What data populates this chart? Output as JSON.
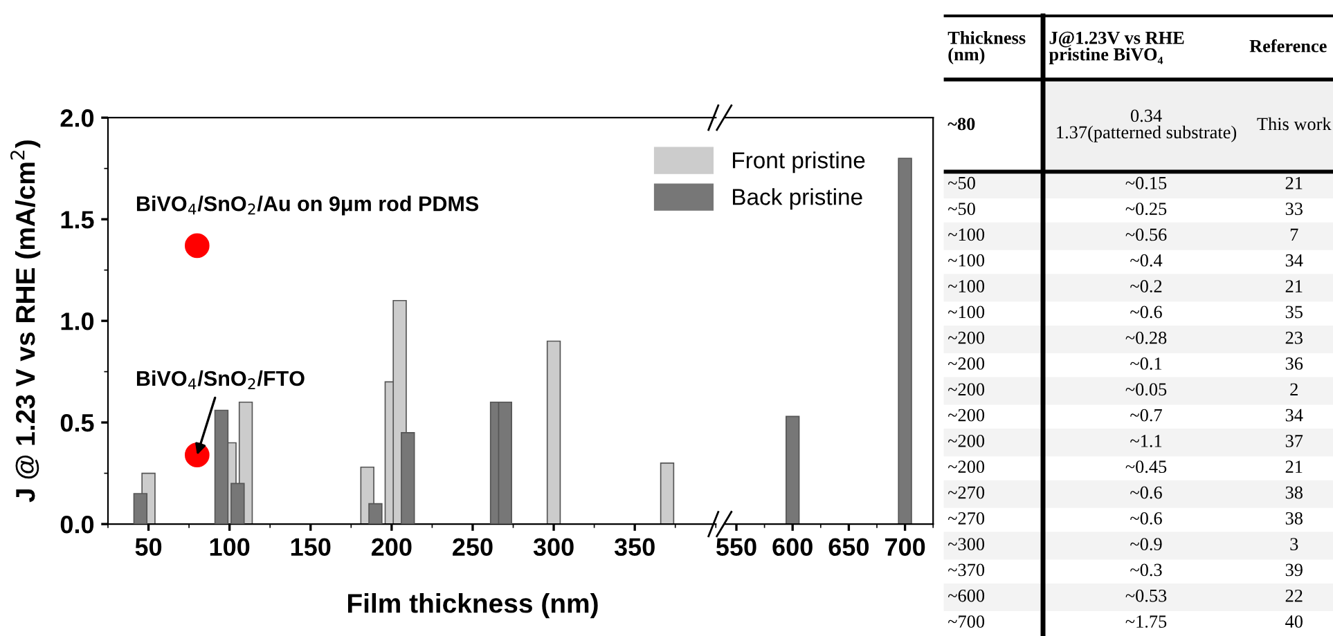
{
  "chart_data": [
    {
      "type": "bar",
      "ylabel": "J @ 1.23 V vs RHE (mA/cm$^{2}$)",
      "xlabel": "Film thickness (nm)",
      "xlim": [
        25,
        400
      ],
      "xticks": [
        50,
        100,
        150,
        200,
        250,
        300,
        350
      ],
      "ylim": [
        0,
        2.0
      ],
      "yticks": [
        {
          "value": 0,
          "label": "0.0"
        },
        {
          "value": 0.5,
          "label": "0.5"
        },
        {
          "value": 1.0,
          "label": "1.0"
        },
        {
          "value": 1.5,
          "label": "1.5"
        },
        {
          "value": 2.0,
          "label": "2.0"
        }
      ],
      "grid": false,
      "legend": "top right",
      "series": [
        {
          "name": "Front pristine",
          "color": "#cccccc",
          "x": [
            50,
            100,
            110,
            185,
            200,
            205,
            300,
            370
          ],
          "values": [
            0.25,
            0.4,
            0.6,
            0.28,
            0.7,
            1.1,
            0.9,
            0.3
          ]
        },
        {
          "name": "Back pristine",
          "color": "#777777",
          "x": [
            45,
            95,
            105,
            190,
            210,
            265,
            270
          ],
          "values": [
            0.15,
            0.56,
            0.2,
            0.1,
            0.45,
            0.6,
            0.6
          ]
        },
        {
          "type": "scatter",
          "color": "#ff0000",
          "marker": "circle",
          "x": [
            80,
            80
          ],
          "values": [
            1.37,
            0.34
          ]
        }
      ],
      "annotations": [
        {
          "text": "BiVO$_{4}$/SnO$_{2}$/Au on 9μm rod PDMS",
          "x": 80,
          "y": 1.37
        },
        {
          "text": "BiVO$_{4}$/SnO$_{2}$/FTO",
          "x": 80,
          "y": 0.34
        }
      ]
    },
    {
      "type": "bar",
      "xlim": [
        540,
        725
      ],
      "xticks": [
        550,
        600,
        650,
        700
      ],
      "ylim": [
        0,
        2.0
      ],
      "tick_labels": "x",
      "grid": false,
      "series": [
        {
          "color": "#777777",
          "x": [
            600,
            700
          ],
          "values": [
            0.53,
            1.8
          ]
        }
      ]
    },
    {
      "type": "other",
      "categories": [
        "Thickness (nm)",
        "J@1.23V vs RHE pristine BiVO₄",
        "Reference"
      ],
      "cell_labels": [
        [
          "~80",
          "0.34\n1.37(patterned substrate)",
          "This work"
        ],
        [
          "~50",
          "~0.15",
          "21"
        ],
        [
          "~50",
          "~0.25",
          "33"
        ],
        [
          "~100",
          "~0.56",
          "7"
        ],
        [
          "~100",
          "~0.4",
          "34"
        ],
        [
          "~100",
          "~0.2",
          "21"
        ],
        [
          "~100",
          "~0.6",
          "35"
        ],
        [
          "~200",
          "~0.28",
          "23"
        ],
        [
          "~200",
          "~0.1",
          "36"
        ],
        [
          "~200",
          "~0.05",
          "2"
        ],
        [
          "~200",
          "~0.7",
          "34"
        ],
        [
          "~200",
          "~1.1",
          "37"
        ],
        [
          "~200",
          "~0.45",
          "21"
        ],
        [
          "~270",
          "~0.6",
          "38"
        ],
        [
          "~270",
          "~0.6",
          "38"
        ],
        [
          "~300",
          "~0.9",
          "3"
        ],
        [
          "~370",
          "~0.3",
          "39"
        ],
        [
          "~600",
          "~0.53",
          "22"
        ],
        [
          "~700",
          "~1.75",
          "40"
        ]
      ]
    }
  ]
}
